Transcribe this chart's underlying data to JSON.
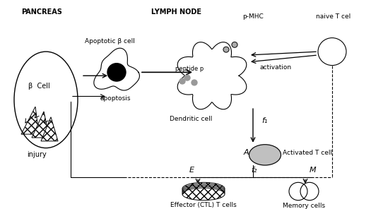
{
  "bg_color": "#ffffff",
  "text_color": "#000000",
  "title": "",
  "pancreas_label": "PANCREAS",
  "lymph_label": "LYMPH NODE",
  "beta_cell_label": "β  Cell",
  "apoptotic_label": "Apoptotic β cell",
  "apoptosis_label": "apoptosis",
  "injury_label": "injury",
  "pmhc_label": "p-MHC",
  "peptide_label": "peptide p",
  "activation_label": "activation",
  "dendritic_label": "Dendritic cell",
  "naive_label": "naive T cel",
  "f1_label": "f₁",
  "activated_label": "Activated T cell",
  "A_label": "A",
  "E_label": "E",
  "f2_label": "f₂",
  "M_label": "M",
  "effector_label": "Effector (CTL) T cells",
  "memory_label": "Memory cells"
}
